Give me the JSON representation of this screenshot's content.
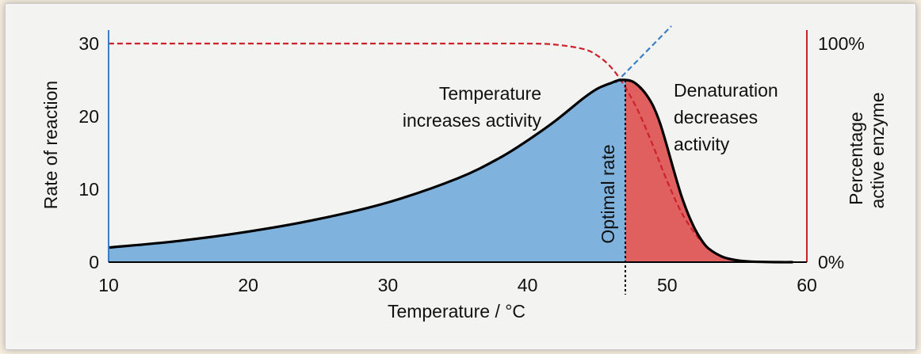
{
  "chart_data": {
    "type": "area",
    "xlabel": "Temperature / °C",
    "ylabel": "Rate of reaction",
    "y2label_lines": [
      "Percentage",
      "active enzyme"
    ],
    "xlim": [
      10,
      60
    ],
    "ylim": [
      0,
      30
    ],
    "x_ticks": [
      "10",
      "20",
      "30",
      "40",
      "50",
      "60"
    ],
    "y_ticks": [
      "0",
      "10",
      "20",
      "30"
    ],
    "y2_ticks": [
      "0%",
      "100%"
    ],
    "optimum_x": 47,
    "series": [
      {
        "style": "solid-black-filled",
        "x": [
          10,
          15,
          20,
          25,
          30,
          35,
          38,
          40,
          42,
          44,
          45,
          46,
          46.5,
          47,
          47.5,
          48,
          48.5,
          49,
          49.5,
          50,
          50.5,
          51,
          51.5,
          52,
          52.5,
          53,
          54,
          55,
          56,
          58,
          59
        ],
        "y": [
          2.0,
          2.9,
          4.2,
          5.9,
          8.2,
          11.5,
          14.3,
          16.7,
          19.4,
          22.5,
          23.8,
          24.6,
          24.95,
          25.0,
          24.8,
          24.1,
          23.0,
          21.4,
          19.0,
          15.8,
          12.4,
          9.2,
          6.6,
          4.5,
          2.9,
          1.8,
          0.7,
          0.25,
          0.08,
          0.0,
          0.0
        ]
      },
      {
        "style": "dashed-red",
        "axis": "right",
        "x": [
          10,
          35,
          40,
          42,
          44,
          45,
          46,
          47,
          48,
          49,
          50,
          51,
          52,
          53,
          54,
          55,
          56,
          58,
          59
        ],
        "y_percent": [
          100,
          100,
          100,
          99.5,
          97.5,
          94.5,
          89,
          80,
          68,
          53,
          37,
          23,
          13,
          6,
          2.5,
          0.8,
          0.3,
          0.05,
          0
        ]
      },
      {
        "style": "dashed-blue",
        "x": [
          46.3,
          50.3
        ],
        "y": [
          24.6,
          32.4
        ]
      }
    ],
    "regions": [
      {
        "from": 10,
        "to": 47,
        "color": "#7fb2dd"
      },
      {
        "from": 47,
        "to": 59,
        "color": "#e06060"
      }
    ],
    "annotations": {
      "rise_lines": [
        "Temperature",
        "increases activity"
      ],
      "fall_lines": [
        "Denaturation",
        "decreases",
        "activity"
      ],
      "optimum_label": "Optimal rate"
    },
    "colors": {
      "left_axis": "#3b7ec4",
      "right_axis": "#cc2229",
      "rise_fill": "#7fb2dd",
      "fall_fill": "#e06060",
      "curve": "#000000",
      "red_dash": "#cc2229",
      "blue_dash": "#3b7ec4"
    }
  }
}
